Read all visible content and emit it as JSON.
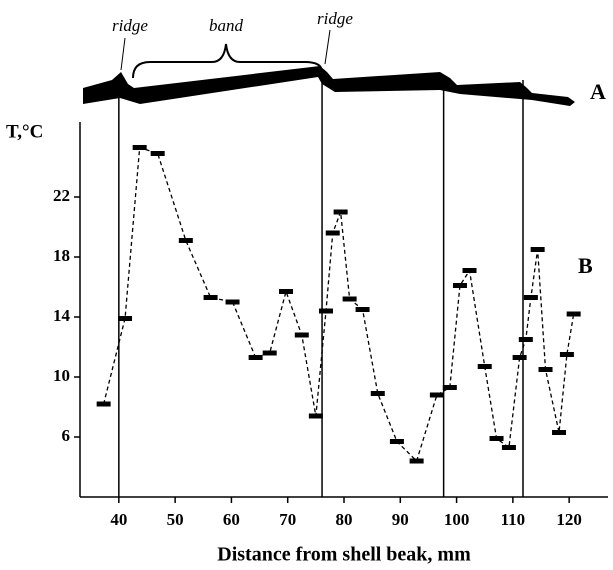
{
  "chart_data": {
    "type": "line",
    "y_label": "T,°C",
    "x_label": "Distance from shell beak, mm",
    "annotations": [
      "ridge",
      "band",
      "ridge",
      "A",
      "B"
    ],
    "ridges": [
      40,
      76.1,
      97.7,
      111.8
    ],
    "xlim": [
      33.1,
      126.9
    ],
    "xticks": [
      40,
      50,
      60,
      70,
      80,
      90,
      100,
      110,
      120
    ],
    "ylim": [
      2,
      27
    ],
    "yticks": [
      6,
      10,
      14,
      18,
      22
    ],
    "series": [
      {
        "color": "#000000",
        "x": [
          37.3,
          41.1,
          43.7,
          46.9,
          51.9,
          56.3,
          60.2,
          64.3,
          66.8,
          69.7,
          72.5,
          75.0,
          76.8,
          78.0,
          79.4,
          81.0,
          83.3,
          86.0,
          89.4,
          92.9,
          96.5,
          98.8,
          100.6,
          102.3,
          105.0,
          107.1,
          109.3,
          111.2,
          112.3,
          113.2,
          114.4,
          115.8,
          118.2,
          119.6,
          120.8
        ],
        "values": [
          8.2,
          13.9,
          25.3,
          24.9,
          19.1,
          15.3,
          15.0,
          11.3,
          11.6,
          15.7,
          12.8,
          7.4,
          14.4,
          19.6,
          21.0,
          15.2,
          14.5,
          8.9,
          5.7,
          4.4,
          8.8,
          9.3,
          16.1,
          17.1,
          10.7,
          5.9,
          5.3,
          11.3,
          12.5,
          15.3,
          18.5,
          10.5,
          6.3,
          11.5,
          14.2
        ]
      }
    ]
  }
}
